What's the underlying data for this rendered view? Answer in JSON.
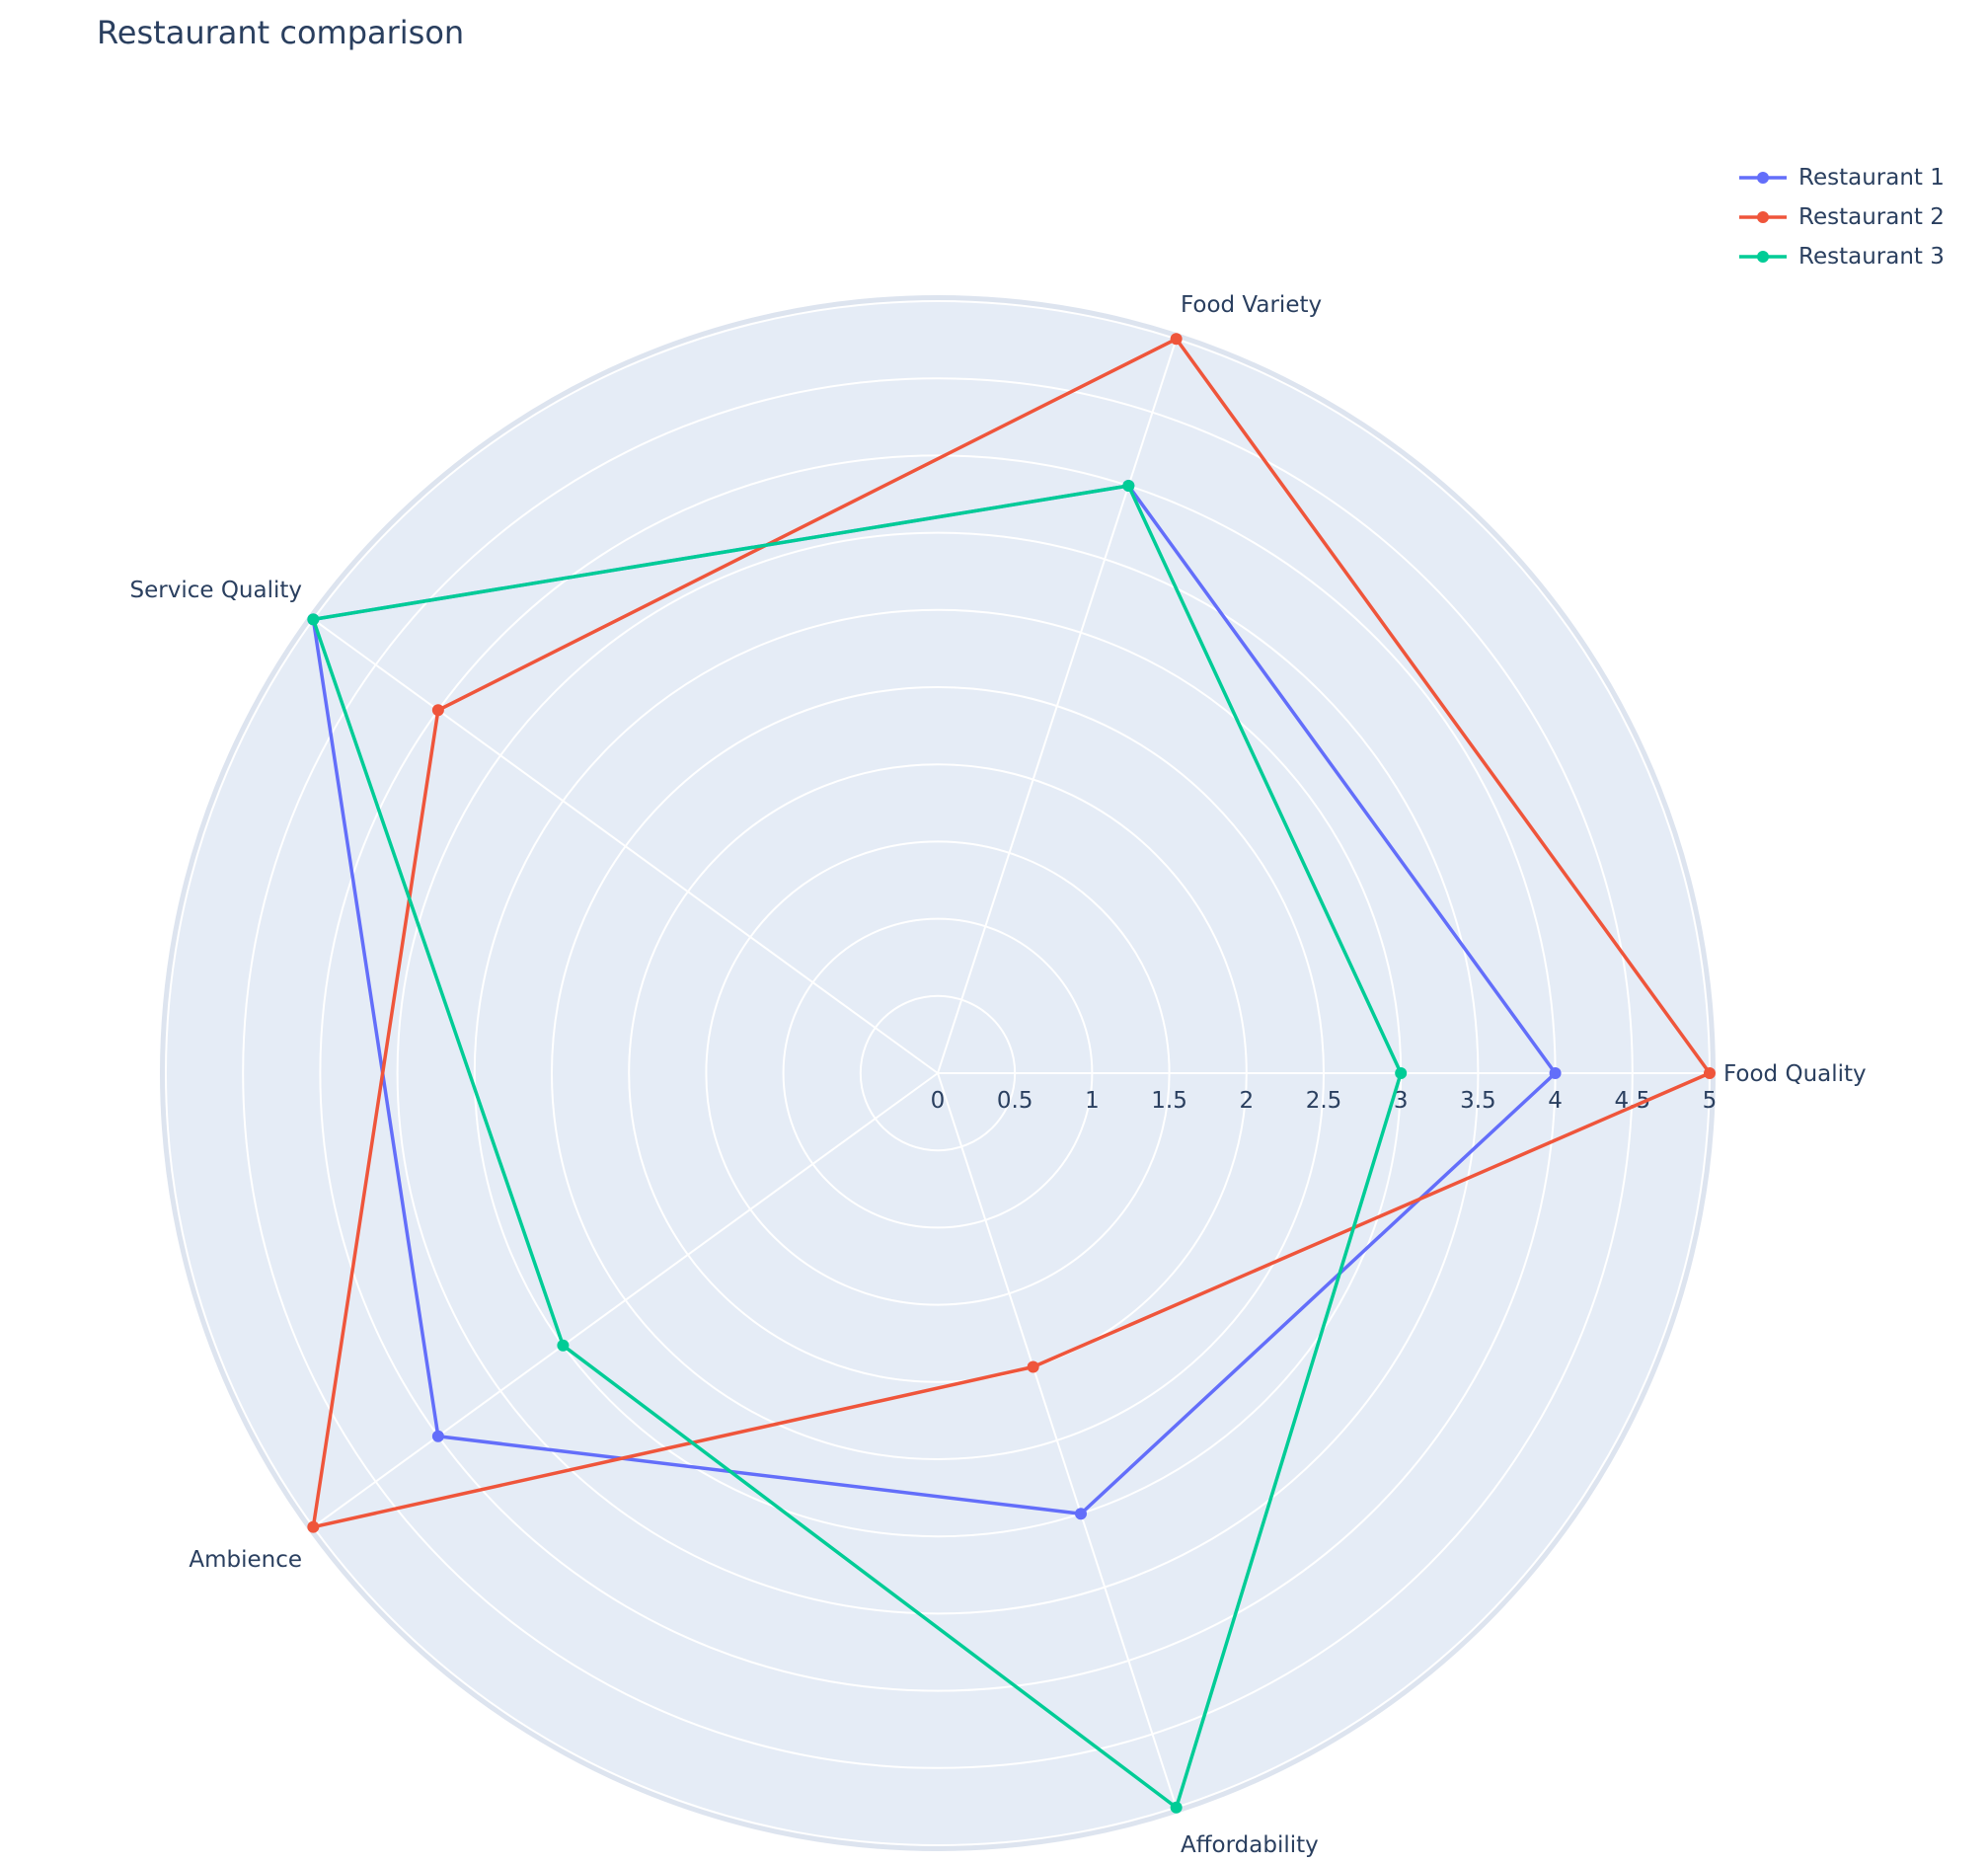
{
  "chart_data": {
    "type": "radar",
    "title": "Restaurant comparison",
    "axes": [
      "Food Quality",
      "Food Variety",
      "Service Quality",
      "Ambience",
      "Affordability"
    ],
    "radial_range": [
      0,
      5
    ],
    "radial_ticks": [
      "0",
      "0.5",
      "1",
      "1.5",
      "2",
      "2.5",
      "3",
      "3.5",
      "4",
      "4.5",
      "5"
    ],
    "legend_position": "top-right",
    "series": [
      {
        "name": "Restaurant 1",
        "color": "#636efa",
        "values": [
          4,
          4,
          5,
          4,
          3
        ]
      },
      {
        "name": "Restaurant 2",
        "color": "#ef553b",
        "values": [
          5,
          5,
          4,
          5,
          2
        ]
      },
      {
        "name": "Restaurant 3",
        "color": "#00cc96",
        "values": [
          3,
          4,
          5,
          3,
          5
        ]
      }
    ]
  }
}
